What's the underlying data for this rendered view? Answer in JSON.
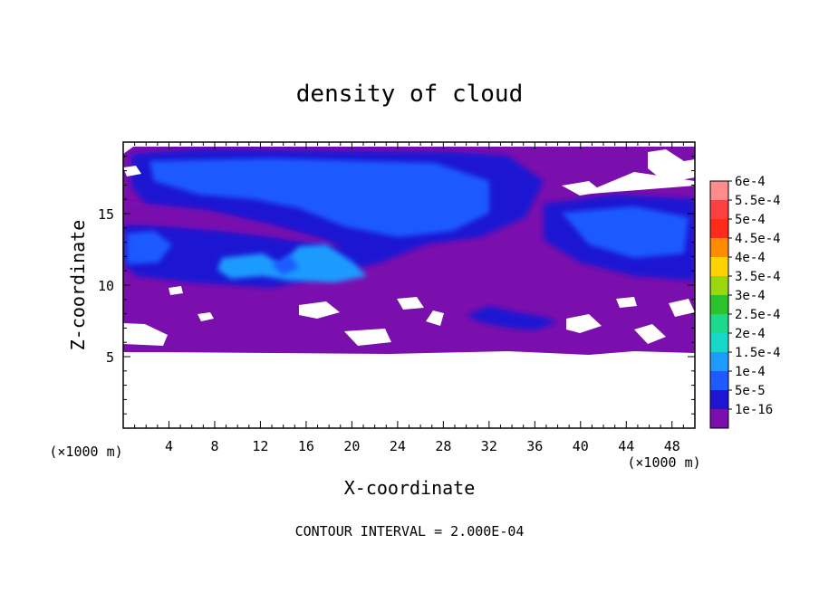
{
  "chart_data": {
    "type": "heatmap",
    "title": "density of cloud",
    "xlabel": "X-coordinate",
    "ylabel": "Z-coordinate",
    "x_unit": "(×1000 m)",
    "y_unit": "(×1000 m)",
    "xlim": [
      0,
      50
    ],
    "ylim": [
      0,
      20
    ],
    "x_ticks": [
      4,
      8,
      12,
      16,
      20,
      24,
      28,
      32,
      36,
      40,
      44,
      48
    ],
    "y_ticks": [
      5,
      10,
      15
    ],
    "footer": "CONTOUR INTERVAL = 2.000E-04",
    "legend": {
      "placement": "right",
      "levels": [
        {
          "label": "6e-4",
          "color": "#ff8c8c"
        },
        {
          "label": "5.5e-4",
          "color": "#ff4040"
        },
        {
          "label": "5e-4",
          "color": "#ff2a1a"
        },
        {
          "label": "4.5e-4",
          "color": "#ff8c00"
        },
        {
          "label": "4e-4",
          "color": "#ffd200"
        },
        {
          "label": "3.5e-4",
          "color": "#9bd70c"
        },
        {
          "label": "3e-4",
          "color": "#2cc22c"
        },
        {
          "label": "2.5e-4",
          "color": "#1cd98c"
        },
        {
          "label": "2e-4",
          "color": "#17d7c8"
        },
        {
          "label": "1.5e-4",
          "color": "#1e9bff"
        },
        {
          "label": "1e-4",
          "color": "#1e5aff"
        },
        {
          "label": "5e-5",
          "color": "#1e14d2"
        },
        {
          "label": "1e-16",
          "color": "#7a0fae"
        }
      ]
    },
    "cloud_layers": [
      {
        "level": "1e-16",
        "z_range": [
          5.3,
          19.5
        ],
        "x_range": [
          0,
          50
        ]
      },
      {
        "level": "5e-5",
        "z_range": [
          10.5,
          19.2
        ],
        "x_range": [
          1,
          50
        ]
      },
      {
        "level": "1e-4",
        "z_range": [
          11.5,
          18.5
        ],
        "x_range": [
          2,
          48
        ]
      },
      {
        "level": "1.5e-4",
        "z_range": [
          10.5,
          12.5
        ],
        "x_range": [
          9,
          22
        ]
      },
      {
        "level": "5e-5",
        "z_range": [
          7,
          8.2
        ],
        "x_range": [
          29,
          38
        ]
      }
    ]
  }
}
